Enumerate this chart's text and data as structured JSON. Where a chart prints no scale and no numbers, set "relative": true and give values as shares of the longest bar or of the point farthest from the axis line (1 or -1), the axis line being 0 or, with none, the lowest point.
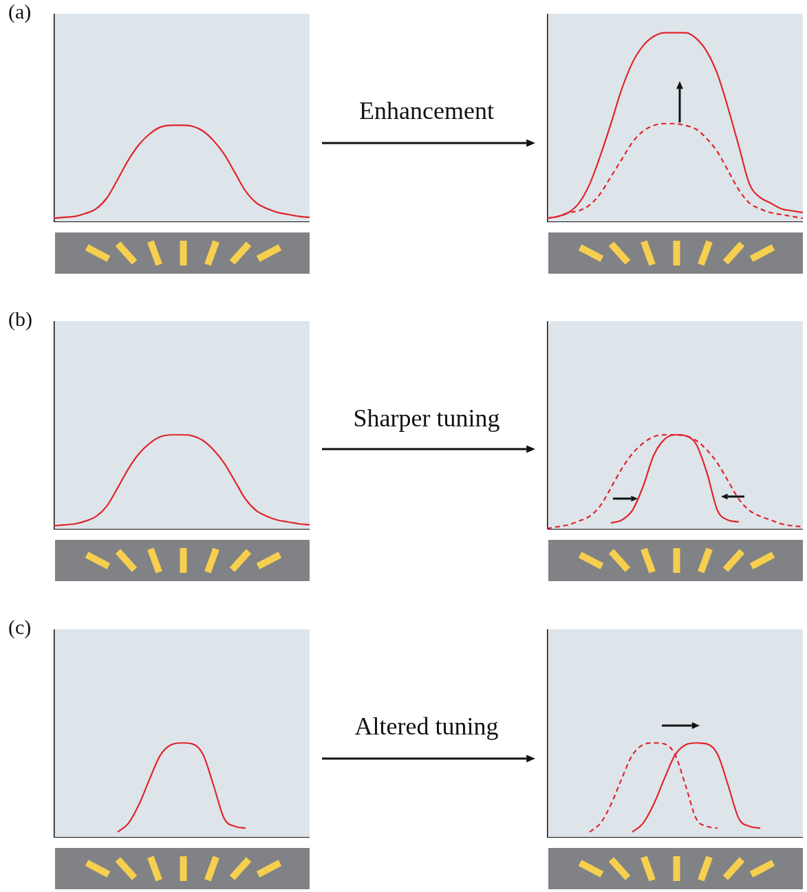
{
  "chart_data": [
    {
      "type": "line",
      "title": "(a)",
      "relative": true,
      "legend": false,
      "grid": false,
      "tick_labels": false,
      "marker": "none",
      "categories": [
        null,
        null,
        null,
        null,
        null,
        null,
        null,
        null,
        null,
        null,
        null,
        null,
        null,
        null,
        null,
        null,
        null,
        null,
        null,
        null,
        null,
        null,
        null,
        null,
        null
      ],
      "series": [
        {
          "color": "#e0242b",
          "line_style": "solid",
          "values": [
            0.04,
            0.05,
            0.06,
            0.09,
            0.14,
            0.25,
            0.44,
            0.64,
            0.8,
            0.91,
            0.98,
            1,
            1,
            0.99,
            0.94,
            0.84,
            0.7,
            0.51,
            0.32,
            0.2,
            0.14,
            0.1,
            0.08,
            0.06,
            0.05
          ]
        }
      ]
    },
    {
      "type": "line",
      "annotations": [
        "Enhancement"
      ],
      "relative": true,
      "legend": false,
      "grid": false,
      "tick_labels": false,
      "marker": "none",
      "categories": [
        null,
        null,
        null,
        null,
        null,
        null,
        null,
        null,
        null,
        null,
        null,
        null,
        null,
        null,
        null,
        null,
        null,
        null,
        null,
        null,
        null,
        null,
        null,
        null,
        null
      ],
      "series": [
        {
          "color": "#e0242b",
          "line_style": "dashed",
          "values": [
            0.02,
            0.03,
            0.05,
            0.06,
            0.09,
            0.15,
            0.24,
            0.33,
            0.42,
            0.48,
            0.51,
            0.52,
            0.52,
            0.51,
            0.49,
            0.44,
            0.37,
            0.27,
            0.17,
            0.1,
            0.07,
            0.05,
            0.04,
            0.03,
            0.02
          ]
        },
        {
          "color": "#e0242b",
          "line_style": "solid",
          "values": [
            0.02,
            0.03,
            0.05,
            0.1,
            0.2,
            0.35,
            0.52,
            0.7,
            0.84,
            0.93,
            0.98,
            1,
            1,
            1,
            0.97,
            0.9,
            0.78,
            0.6,
            0.4,
            0.2,
            0.13,
            0.1,
            0.07,
            0.06,
            0.05
          ]
        }
      ]
    },
    {
      "type": "line",
      "title": "(b)",
      "relative": true,
      "legend": false,
      "grid": false,
      "tick_labels": false,
      "marker": "none",
      "categories": [
        null,
        null,
        null,
        null,
        null,
        null,
        null,
        null,
        null,
        null,
        null,
        null,
        null,
        null,
        null,
        null,
        null,
        null,
        null,
        null,
        null,
        null,
        null,
        null,
        null
      ],
      "series": [
        {
          "color": "#e0242b",
          "line_style": "solid",
          "values": [
            0.04,
            0.05,
            0.06,
            0.09,
            0.14,
            0.25,
            0.44,
            0.64,
            0.8,
            0.91,
            0.98,
            1,
            1,
            0.99,
            0.94,
            0.84,
            0.7,
            0.51,
            0.32,
            0.2,
            0.14,
            0.1,
            0.08,
            0.06,
            0.05
          ]
        }
      ]
    },
    {
      "type": "line",
      "annotations": [
        "Sharper tuning"
      ],
      "relative": true,
      "legend": false,
      "grid": false,
      "tick_labels": false,
      "marker": "none",
      "categories": [
        null,
        null,
        null,
        null,
        null,
        null,
        null,
        null,
        null,
        null,
        null,
        null,
        null,
        null,
        null,
        null,
        null,
        null,
        null,
        null,
        null,
        null,
        null,
        null,
        null
      ],
      "series": [
        {
          "color": "#e0242b",
          "line_style": "dashed",
          "values": [
            0.01,
            0.03,
            0.05,
            0.09,
            0.14,
            0.25,
            0.44,
            0.64,
            0.8,
            0.91,
            0.98,
            1,
            1,
            0.99,
            0.94,
            0.84,
            0.7,
            0.51,
            0.32,
            0.2,
            0.14,
            0.1,
            0.06,
            0.04,
            0.03
          ]
        },
        {
          "color": "#e0242b",
          "line_style": "solid",
          "values": [
            null,
            null,
            null,
            null,
            null,
            null,
            0.07,
            0.1,
            0.2,
            0.45,
            0.78,
            0.95,
            1,
            0.99,
            0.9,
            0.6,
            0.2,
            0.1,
            0.08,
            null,
            null,
            null,
            null,
            null,
            null
          ]
        }
      ]
    },
    {
      "type": "line",
      "title": "(c)",
      "relative": true,
      "legend": false,
      "grid": false,
      "tick_labels": false,
      "marker": "none",
      "categories": [
        null,
        null,
        null,
        null,
        null,
        null,
        null,
        null,
        null,
        null,
        null,
        null,
        null,
        null,
        null,
        null,
        null,
        null,
        null,
        null,
        null,
        null,
        null,
        null,
        null
      ],
      "series": [
        {
          "color": "#e0242b",
          "line_style": "solid",
          "values": [
            null,
            null,
            null,
            null,
            null,
            null,
            0.06,
            0.15,
            0.35,
            0.62,
            0.87,
            0.98,
            1,
            0.99,
            0.88,
            0.55,
            0.2,
            0.12,
            0.1,
            null,
            null,
            null,
            null,
            null,
            null
          ]
        }
      ]
    },
    {
      "type": "line",
      "annotations": [
        "Altered tuning"
      ],
      "relative": true,
      "legend": false,
      "grid": false,
      "tick_labels": false,
      "marker": "none",
      "categories": [
        null,
        null,
        null,
        null,
        null,
        null,
        null,
        null,
        null,
        null,
        null,
        null,
        null,
        null,
        null,
        null,
        null,
        null,
        null,
        null,
        null,
        null,
        null,
        null,
        null
      ],
      "series": [
        {
          "color": "#e0242b",
          "line_style": "dashed",
          "values": [
            null,
            null,
            null,
            null,
            0.06,
            0.15,
            0.35,
            0.62,
            0.87,
            0.98,
            1,
            0.99,
            0.88,
            0.55,
            0.2,
            0.12,
            0.1,
            null,
            null,
            null,
            null,
            null,
            null,
            null,
            null
          ]
        },
        {
          "color": "#e0242b",
          "line_style": "solid",
          "values": [
            null,
            null,
            null,
            null,
            null,
            null,
            null,
            null,
            0.06,
            0.15,
            0.35,
            0.62,
            0.87,
            0.98,
            1,
            0.99,
            0.88,
            0.55,
            0.2,
            0.12,
            0.1,
            null,
            null,
            null,
            null
          ]
        }
      ]
    }
  ]
}
